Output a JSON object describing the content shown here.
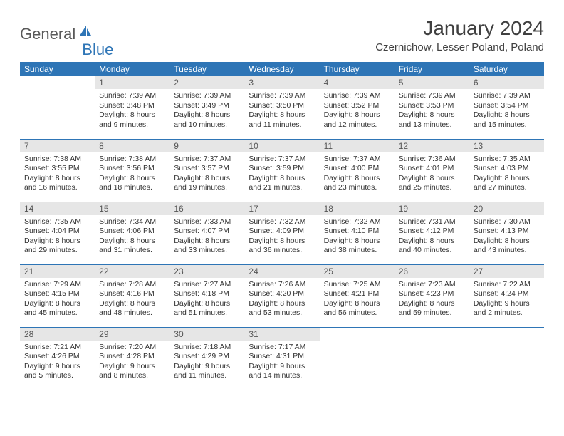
{
  "logo": {
    "word1": "General",
    "word2": "Blue",
    "color1": "#595959",
    "color2": "#2e75b6"
  },
  "title": "January 2024",
  "location": "Czernichow, Lesser Poland, Poland",
  "colors": {
    "header_bg": "#2e75b6",
    "header_text": "#ffffff",
    "daynum_bg": "#e6e6e6",
    "row_divider": "#2e75b6",
    "body_text": "#333333"
  },
  "days_of_week": [
    "Sunday",
    "Monday",
    "Tuesday",
    "Wednesday",
    "Thursday",
    "Friday",
    "Saturday"
  ],
  "weeks": [
    [
      null,
      {
        "n": "1",
        "sunrise": "7:39 AM",
        "sunset": "3:48 PM",
        "daylight": "8 hours and 9 minutes."
      },
      {
        "n": "2",
        "sunrise": "7:39 AM",
        "sunset": "3:49 PM",
        "daylight": "8 hours and 10 minutes."
      },
      {
        "n": "3",
        "sunrise": "7:39 AM",
        "sunset": "3:50 PM",
        "daylight": "8 hours and 11 minutes."
      },
      {
        "n": "4",
        "sunrise": "7:39 AM",
        "sunset": "3:52 PM",
        "daylight": "8 hours and 12 minutes."
      },
      {
        "n": "5",
        "sunrise": "7:39 AM",
        "sunset": "3:53 PM",
        "daylight": "8 hours and 13 minutes."
      },
      {
        "n": "6",
        "sunrise": "7:39 AM",
        "sunset": "3:54 PM",
        "daylight": "8 hours and 15 minutes."
      }
    ],
    [
      {
        "n": "7",
        "sunrise": "7:38 AM",
        "sunset": "3:55 PM",
        "daylight": "8 hours and 16 minutes."
      },
      {
        "n": "8",
        "sunrise": "7:38 AM",
        "sunset": "3:56 PM",
        "daylight": "8 hours and 18 minutes."
      },
      {
        "n": "9",
        "sunrise": "7:37 AM",
        "sunset": "3:57 PM",
        "daylight": "8 hours and 19 minutes."
      },
      {
        "n": "10",
        "sunrise": "7:37 AM",
        "sunset": "3:59 PM",
        "daylight": "8 hours and 21 minutes."
      },
      {
        "n": "11",
        "sunrise": "7:37 AM",
        "sunset": "4:00 PM",
        "daylight": "8 hours and 23 minutes."
      },
      {
        "n": "12",
        "sunrise": "7:36 AM",
        "sunset": "4:01 PM",
        "daylight": "8 hours and 25 minutes."
      },
      {
        "n": "13",
        "sunrise": "7:35 AM",
        "sunset": "4:03 PM",
        "daylight": "8 hours and 27 minutes."
      }
    ],
    [
      {
        "n": "14",
        "sunrise": "7:35 AM",
        "sunset": "4:04 PM",
        "daylight": "8 hours and 29 minutes."
      },
      {
        "n": "15",
        "sunrise": "7:34 AM",
        "sunset": "4:06 PM",
        "daylight": "8 hours and 31 minutes."
      },
      {
        "n": "16",
        "sunrise": "7:33 AM",
        "sunset": "4:07 PM",
        "daylight": "8 hours and 33 minutes."
      },
      {
        "n": "17",
        "sunrise": "7:32 AM",
        "sunset": "4:09 PM",
        "daylight": "8 hours and 36 minutes."
      },
      {
        "n": "18",
        "sunrise": "7:32 AM",
        "sunset": "4:10 PM",
        "daylight": "8 hours and 38 minutes."
      },
      {
        "n": "19",
        "sunrise": "7:31 AM",
        "sunset": "4:12 PM",
        "daylight": "8 hours and 40 minutes."
      },
      {
        "n": "20",
        "sunrise": "7:30 AM",
        "sunset": "4:13 PM",
        "daylight": "8 hours and 43 minutes."
      }
    ],
    [
      {
        "n": "21",
        "sunrise": "7:29 AM",
        "sunset": "4:15 PM",
        "daylight": "8 hours and 45 minutes."
      },
      {
        "n": "22",
        "sunrise": "7:28 AM",
        "sunset": "4:16 PM",
        "daylight": "8 hours and 48 minutes."
      },
      {
        "n": "23",
        "sunrise": "7:27 AM",
        "sunset": "4:18 PM",
        "daylight": "8 hours and 51 minutes."
      },
      {
        "n": "24",
        "sunrise": "7:26 AM",
        "sunset": "4:20 PM",
        "daylight": "8 hours and 53 minutes."
      },
      {
        "n": "25",
        "sunrise": "7:25 AM",
        "sunset": "4:21 PM",
        "daylight": "8 hours and 56 minutes."
      },
      {
        "n": "26",
        "sunrise": "7:23 AM",
        "sunset": "4:23 PM",
        "daylight": "8 hours and 59 minutes."
      },
      {
        "n": "27",
        "sunrise": "7:22 AM",
        "sunset": "4:24 PM",
        "daylight": "9 hours and 2 minutes."
      }
    ],
    [
      {
        "n": "28",
        "sunrise": "7:21 AM",
        "sunset": "4:26 PM",
        "daylight": "9 hours and 5 minutes."
      },
      {
        "n": "29",
        "sunrise": "7:20 AM",
        "sunset": "4:28 PM",
        "daylight": "9 hours and 8 minutes."
      },
      {
        "n": "30",
        "sunrise": "7:18 AM",
        "sunset": "4:29 PM",
        "daylight": "9 hours and 11 minutes."
      },
      {
        "n": "31",
        "sunrise": "7:17 AM",
        "sunset": "4:31 PM",
        "daylight": "9 hours and 14 minutes."
      },
      null,
      null,
      null
    ]
  ],
  "labels": {
    "sunrise": "Sunrise:",
    "sunset": "Sunset:",
    "daylight": "Daylight:"
  }
}
